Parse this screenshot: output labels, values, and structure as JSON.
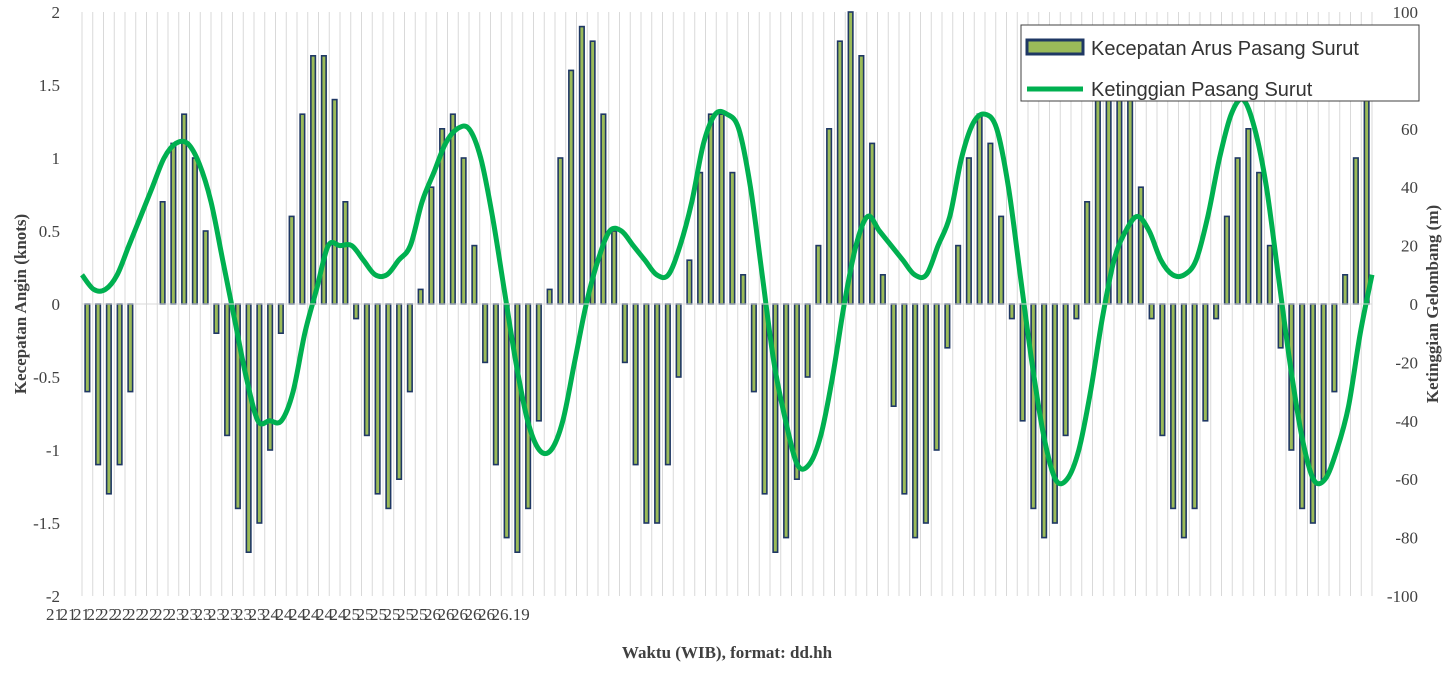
{
  "chart_data": {
    "type": "bar+line",
    "xlabel": "Waktu (WIB), format: dd.hh",
    "ylabel_left": "Kecepatan Angin (knots)",
    "ylabel_right": "Ketinggian Gelombang (m)",
    "ylim_left": [
      -2,
      2
    ],
    "ylim_right": [
      -100,
      100
    ],
    "yticks_left": [
      "-2",
      "-1.5",
      "-1",
      "-0.5",
      "0",
      "0.5",
      "1",
      "1.5",
      "2"
    ],
    "yticks_right": [
      "-100",
      "-80",
      "-60",
      "-40",
      "-20",
      "0",
      "20",
      "40",
      "60",
      "80",
      "100"
    ],
    "x_tick_labels": [
      "21",
      "21",
      "21",
      "22",
      "22",
      "22",
      "22",
      "22",
      "22",
      "23",
      "23",
      "23",
      "23",
      "23",
      "23",
      "23",
      "24",
      "24",
      "24",
      "24",
      "24",
      "24",
      "25",
      "25",
      "25",
      "25",
      "25",
      "25",
      "26",
      "26",
      "26",
      "26",
      "26",
      "26.19"
    ],
    "grid": "vertical",
    "legend_position": "top-right",
    "series": [
      {
        "name": "Kecepatan Arus Pasang Surut",
        "type": "bar",
        "axis": "left",
        "color": "#9bbb59",
        "edge_color": "#1f3864",
        "values": [
          -0.6,
          -1.1,
          -1.3,
          -1.1,
          -0.6,
          0,
          0,
          0.7,
          1.1,
          1.3,
          1.0,
          0.5,
          -0.2,
          -0.9,
          -1.4,
          -1.7,
          -1.5,
          -1.0,
          -0.2,
          0.6,
          1.3,
          1.7,
          1.7,
          1.4,
          0.7,
          -0.1,
          -0.9,
          -1.3,
          -1.4,
          -1.2,
          -0.6,
          0.1,
          0.8,
          1.2,
          1.3,
          1.0,
          0.4,
          -0.4,
          -1.1,
          -1.6,
          -1.7,
          -1.4,
          -0.8,
          0.1,
          1.0,
          1.6,
          1.9,
          1.8,
          1.3,
          0.5,
          -0.4,
          -1.1,
          -1.5,
          -1.5,
          -1.1,
          -0.5,
          0.3,
          0.9,
          1.3,
          1.3,
          0.9,
          0.2,
          -0.6,
          -1.3,
          -1.7,
          -1.6,
          -1.2,
          -0.5,
          0.4,
          1.2,
          1.8,
          2.0,
          1.7,
          1.1,
          0.2,
          -0.7,
          -1.3,
          -1.6,
          -1.5,
          -1.0,
          -0.3,
          0.4,
          1.0,
          1.3,
          1.1,
          0.6,
          -0.1,
          -0.8,
          -1.4,
          -1.6,
          -1.5,
          -0.9,
          -0.1,
          0.7,
          1.4,
          1.9,
          1.9,
          1.6,
          0.8,
          -0.1,
          -0.9,
          -1.4,
          -1.6,
          -1.4,
          -0.8,
          -0.1,
          0.6,
          1.0,
          1.2,
          0.9,
          0.4,
          -0.3,
          -1.0,
          -1.4,
          -1.5,
          -1.2,
          -0.6,
          0.2,
          1.0,
          1.5
        ]
      },
      {
        "name": "Ketinggian Pasang Surut",
        "type": "line",
        "axis": "right",
        "color": "#00b050",
        "values": [
          10,
          5,
          5,
          10,
          20,
          30,
          40,
          50,
          55,
          55,
          48,
          35,
          15,
          -5,
          -25,
          -40,
          -40,
          -40,
          -30,
          -10,
          5,
          20,
          20,
          20,
          15,
          10,
          10,
          15,
          20,
          35,
          45,
          55,
          60,
          60,
          50,
          30,
          5,
          -20,
          -40,
          -50,
          -50,
          -40,
          -20,
          0,
          15,
          25,
          25,
          20,
          15,
          10,
          10,
          20,
          35,
          55,
          65,
          65,
          60,
          40,
          10,
          -20,
          -40,
          -55,
          -55,
          -45,
          -25,
          0,
          20,
          30,
          25,
          20,
          15,
          10,
          10,
          20,
          30,
          50,
          62,
          65,
          60,
          40,
          10,
          -20,
          -45,
          -60,
          -60,
          -50,
          -30,
          -5,
          15,
          25,
          30,
          25,
          15,
          10,
          10,
          15,
          30,
          50,
          65,
          70,
          60,
          40,
          10,
          -20,
          -45,
          -60,
          -60,
          -50,
          -35,
          -10,
          10
        ]
      }
    ]
  }
}
